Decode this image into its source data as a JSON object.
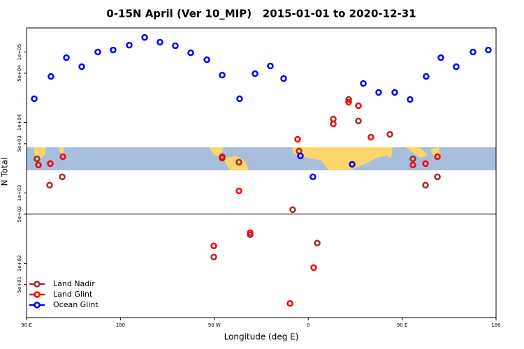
{
  "chart_data": {
    "type": "scatter",
    "title": "0-15N April (Ver 10_MIP)   2015-01-01 to 2020-12-31",
    "x_label": "Longitude (deg E)",
    "y_label": "N Total",
    "xlim": [
      90,
      540
    ],
    "ylim": [
      17,
      220000
    ],
    "log_y": true,
    "xticks": [
      {
        "value": 90,
        "label": "90 E"
      },
      {
        "value": 180,
        "label": "180"
      },
      {
        "value": 270,
        "label": "90 W"
      },
      {
        "value": 360,
        "label": "0"
      },
      {
        "value": 450,
        "label": "90 E"
      },
      {
        "value": 540,
        "label": "180"
      }
    ],
    "yticks": [
      {
        "value": 100000,
        "label": "1e+05"
      },
      {
        "value": 50000,
        "label": "5e+04"
      },
      {
        "value": 10000,
        "label": "1e+04"
      },
      {
        "value": 5000,
        "label": "5e+03"
      },
      {
        "value": 1000,
        "label": "1e+03"
      },
      {
        "value": 500,
        "label": "5e+02"
      },
      {
        "value": 100,
        "label": "1e+02"
      },
      {
        "value": 50,
        "label": "5e+01"
      }
    ],
    "hlines": [
      500
    ],
    "legend": "bottom-left",
    "series": [
      {
        "name": "Land Nadir",
        "color": "#a52a2a",
        "x": [
          100.0,
          112.1,
          124.2,
          269.5,
          277.5,
          293.6,
          304.3,
          345.1,
          351.2,
          368.6,
          384.0,
          398.7,
          408.1,
          438.2,
          460.3,
          472.4,
          483.8
        ],
        "values": [
          3050,
          1290,
          1690,
          123,
          3270,
          2730,
          255,
          578,
          3930,
          194,
          11200,
          21200,
          10500,
          6790,
          3050,
          1290,
          1690
        ]
      },
      {
        "name": "Land Glint",
        "color": "#ff0000",
        "x": [
          101.4,
          112.8,
          124.8,
          269.5,
          277.5,
          293.6,
          304.3,
          342.5,
          349.8,
          365.2,
          384.0,
          398.7,
          408.1,
          420.1,
          460.3,
          472.4,
          483.8
        ],
        "values": [
          2490,
          2610,
          3270,
          177,
          3130,
          1070,
          273,
          27,
          5780,
          87,
          9550,
          19400,
          17300,
          6190,
          2490,
          2610,
          3270
        ]
      },
      {
        "name": "Ocean Glint",
        "color": "#0000ff",
        "x": [
          97.4,
          113.4,
          128.2,
          142.9,
          158.3,
          173.0,
          188.4,
          203.2,
          217.9,
          232.6,
          247.4,
          262.8,
          277.5,
          294.2,
          309.0,
          323.7,
          336.4,
          352.5,
          364.5,
          402.1,
          412.8,
          427.5,
          442.9,
          457.6,
          473.0,
          487.1,
          501.8,
          517.9,
          532.6
        ],
        "values": [
          21700,
          45000,
          83300,
          62000,
          100000,
          107000,
          125000,
          161000,
          138000,
          123000,
          97700,
          77800,
          47100,
          21700,
          49300,
          63400,
          42100,
          3350,
          1690,
          2550,
          35800,
          26700,
          26700,
          21200,
          45000,
          83300,
          62000,
          100000,
          107000
        ]
      }
    ]
  }
}
